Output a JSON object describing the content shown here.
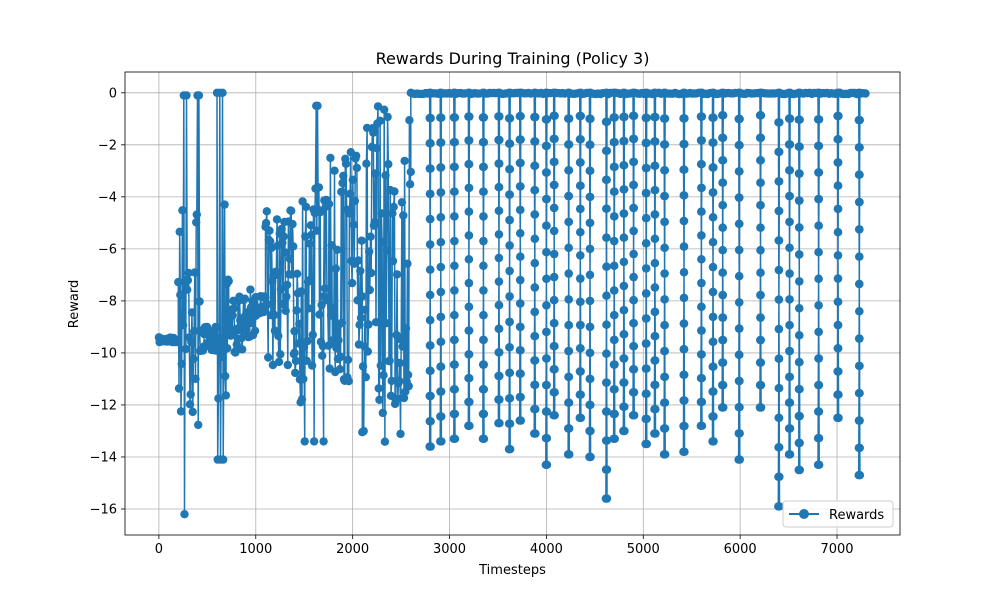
{
  "chart_data": {
    "type": "line",
    "title": "Rewards During Training (Policy 3)",
    "xlabel": "Timesteps",
    "ylabel": "Reward",
    "xlim": [
      -350,
      7650
    ],
    "ylim": [
      -17,
      0.8
    ],
    "xticks": [
      0,
      1000,
      2000,
      3000,
      4000,
      5000,
      6000,
      7000
    ],
    "yticks": [
      0,
      -2,
      -4,
      -6,
      -8,
      -10,
      -12,
      -14,
      -16
    ],
    "grid": true,
    "legend": "lower-right",
    "color": "#1f77b4",
    "marker": "circle",
    "series": [
      {
        "name": "Rewards",
        "segments": [
          {
            "x": [
              0,
              200
            ],
            "values": [
              -9.4,
              -9.6
            ]
          },
          {
            "x": [
              200,
              420
            ],
            "values": [
              -4.0,
              -12.8
            ],
            "zigzag": [
              -0.1,
              -16.2
            ]
          },
          {
            "x": [
              420,
              600
            ],
            "values": [
              -9.0,
              -10.0
            ]
          },
          {
            "x": [
              600,
              720
            ],
            "values": [
              -4.0,
              -12.0
            ],
            "zigzag": [
              0.0,
              -14.1
            ]
          },
          {
            "x": [
              720,
              1000
            ],
            "values": [
              -7.5,
              -10.0
            ]
          },
          {
            "x": [
              1000,
              1100
            ],
            "values": [
              -7.8,
              -8.5
            ]
          },
          {
            "x": [
              1100,
              1400
            ],
            "values": [
              -4.5,
              -10.5
            ]
          },
          {
            "x": [
              1400,
              1700
            ],
            "values": [
              -3.5,
              -12.0
            ],
            "zigzag": [
              -0.5,
              -13.4
            ]
          },
          {
            "x": [
              1700,
              2100
            ],
            "values": [
              -2.0,
              -11.5
            ]
          },
          {
            "x": [
              2100,
              2600
            ],
            "values": [
              -0.5,
              -13.5
            ]
          }
        ],
        "spikes": [
          {
            "x": 2800,
            "min": -13.6
          },
          {
            "x": 2910,
            "min": -13.4
          },
          {
            "x": 3050,
            "min": -13.3
          },
          {
            "x": 3200,
            "min": -12.8
          },
          {
            "x": 3350,
            "min": -13.3
          },
          {
            "x": 3510,
            "min": -12.7
          },
          {
            "x": 3620,
            "min": -13.7
          },
          {
            "x": 3730,
            "min": -12.6
          },
          {
            "x": 3880,
            "min": -13.1
          },
          {
            "x": 4000,
            "min": -14.3
          },
          {
            "x": 4080,
            "min": -12.4
          },
          {
            "x": 4230,
            "min": -13.9
          },
          {
            "x": 4350,
            "min": -12.5
          },
          {
            "x": 4450,
            "min": -14.0
          },
          {
            "x": 4620,
            "min": -15.6
          },
          {
            "x": 4700,
            "min": -13.3
          },
          {
            "x": 4800,
            "min": -13.0
          },
          {
            "x": 4900,
            "min": -12.4
          },
          {
            "x": 5030,
            "min": -13.5
          },
          {
            "x": 5120,
            "min": -13.1
          },
          {
            "x": 5220,
            "min": -13.9
          },
          {
            "x": 5420,
            "min": -13.8
          },
          {
            "x": 5600,
            "min": -12.8
          },
          {
            "x": 5720,
            "min": -13.4
          },
          {
            "x": 5820,
            "min": -12.1
          },
          {
            "x": 5990,
            "min": -14.1
          },
          {
            "x": 6210,
            "min": -12.1
          },
          {
            "x": 6400,
            "min": -15.9
          },
          {
            "x": 6510,
            "min": -13.9
          },
          {
            "x": 6610,
            "min": -14.5
          },
          {
            "x": 6810,
            "min": -14.3
          },
          {
            "x": 7010,
            "min": -12.5
          },
          {
            "x": 7230,
            "min": -14.7
          }
        ]
      }
    ]
  }
}
